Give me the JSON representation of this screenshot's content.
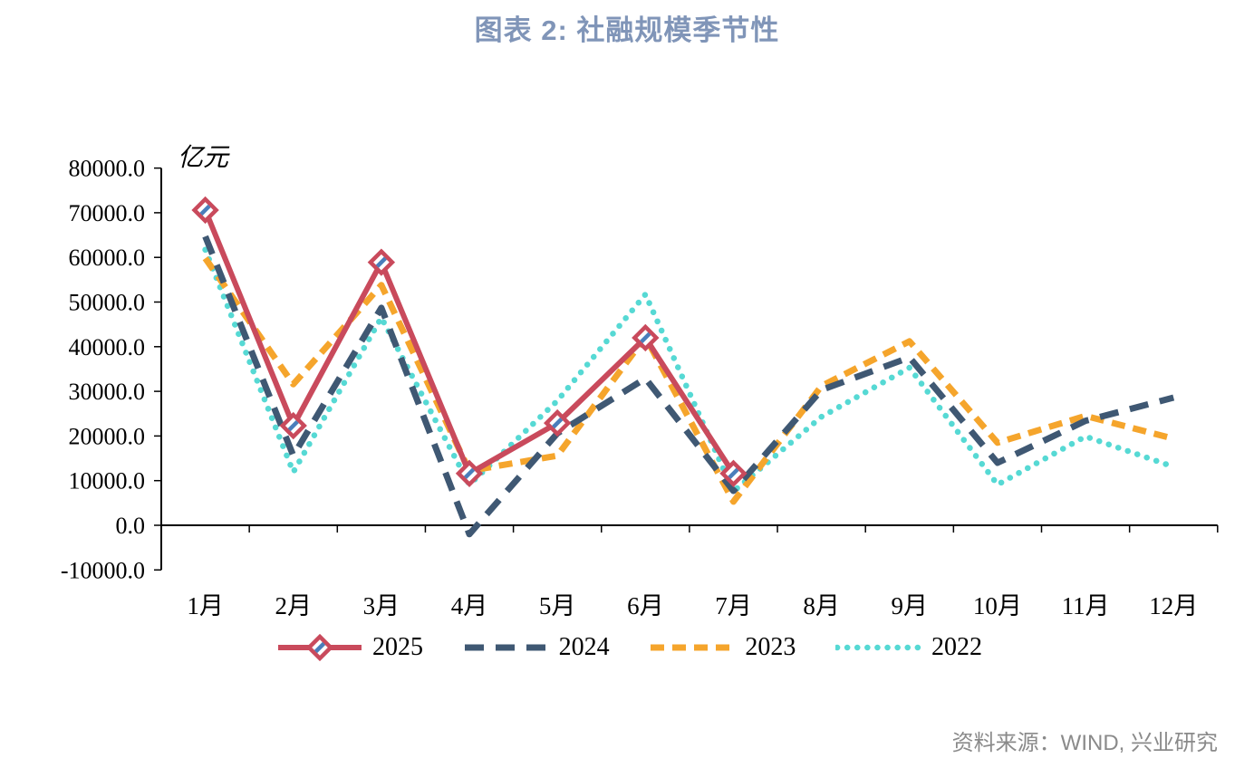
{
  "page": {
    "title": "图表 2: 社融规模季节性",
    "source": "资料来源：WIND, 兴业研究",
    "title_color": "#8095B8",
    "source_color": "#8A8A8A"
  },
  "chart_data": {
    "type": "line",
    "title": "图表 2: 社融规模季节性",
    "unit_label": "亿元",
    "categories": [
      "1月",
      "2月",
      "3月",
      "4月",
      "5月",
      "6月",
      "7月",
      "8月",
      "9月",
      "10月",
      "11月",
      "12月"
    ],
    "ylim": [
      -10000,
      80000
    ],
    "ytick_step": 10000,
    "ytick_labels": [
      "80000.0",
      "70000.0",
      "60000.0",
      "50000.0",
      "40000.0",
      "30000.0",
      "20000.0",
      "10000.0",
      "0.0",
      "-10000.0"
    ],
    "grid": false,
    "legend_position": "bottom",
    "axis_color": "#000000",
    "series": [
      {
        "name": "2025",
        "color": "#C94A5C",
        "line_style": "solid",
        "marker": "diamond",
        "marker_fill": "#FFFFFF",
        "marker_stripe": "#4A7EBB",
        "values": [
          70600,
          22300,
          58900,
          11600,
          22900,
          42000,
          11600,
          null,
          null,
          null,
          null,
          null
        ]
      },
      {
        "name": "2024",
        "color": "#3F5873",
        "line_style": "long-dash",
        "marker": "none",
        "values": [
          64700,
          15600,
          48700,
          -1987,
          20600,
          32900,
          7700,
          30300,
          37600,
          14000,
          23400,
          28600
        ]
      },
      {
        "name": "2023",
        "color": "#F5A52C",
        "line_style": "dash",
        "marker": "none",
        "values": [
          59800,
          31600,
          53800,
          12200,
          15600,
          42200,
          5300,
          31200,
          41200,
          18500,
          24500,
          19400
        ]
      },
      {
        "name": "2022",
        "color": "#56D9D4",
        "line_style": "dot",
        "marker": "none",
        "values": [
          61700,
          11900,
          46500,
          9100,
          27900,
          51700,
          7600,
          24300,
          35300,
          9100,
          19900,
          13100
        ]
      }
    ]
  }
}
